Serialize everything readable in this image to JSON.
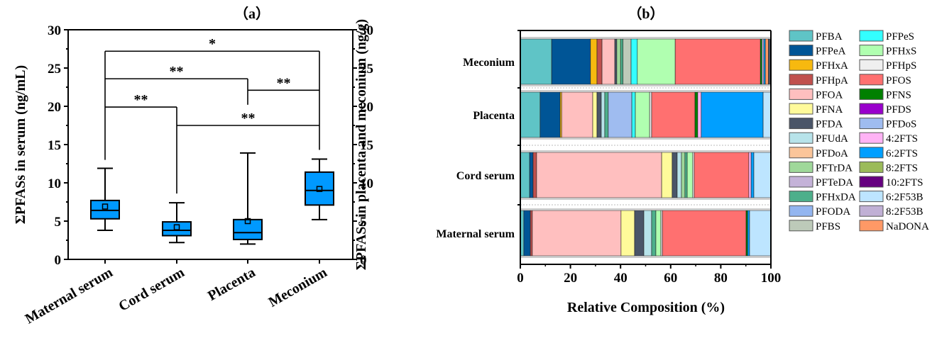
{
  "chart_data": [
    {
      "type": "box",
      "panel_title": "（a）",
      "categories": [
        "Maternal serum",
        "Cord serum",
        "Placenta",
        "Meconium"
      ],
      "ylabel_left": "ΣPFASs in serum (ng/mL)",
      "ylabel_right": "ΣPFASs in placenta and meconium (ng/g)",
      "ylim": [
        0,
        30
      ],
      "yticks": [
        0,
        5,
        10,
        15,
        20,
        25,
        30
      ],
      "box_color": "#0099ff",
      "boxes": [
        {
          "name": "Maternal serum",
          "whisker_low": 3.8,
          "q1": 5.3,
          "median": 6.4,
          "q3": 7.7,
          "whisker_high": 11.9,
          "mean": 6.9
        },
        {
          "name": "Cord serum",
          "whisker_low": 2.2,
          "q1": 3.1,
          "median": 3.8,
          "q3": 4.9,
          "whisker_high": 7.4,
          "mean": 4.2
        },
        {
          "name": "Placenta",
          "whisker_low": 2.0,
          "q1": 2.6,
          "median": 3.5,
          "q3": 5.2,
          "whisker_high": 13.9,
          "mean": 5.0
        },
        {
          "name": "Meconium",
          "whisker_low": 5.2,
          "q1": 7.1,
          "median": 9.0,
          "q3": 11.4,
          "whisker_high": 13.1,
          "mean": 9.2
        }
      ],
      "significance": [
        {
          "from": 0,
          "to": 3,
          "level": 27.2,
          "label": "*",
          "from_drop": 13.0,
          "to_drop": 14.3
        },
        {
          "from": 0,
          "to": 2,
          "level": 23.6,
          "label": "**",
          "from_drop": 23.6,
          "to_drop": 20.2
        },
        {
          "from": 2,
          "to": 3,
          "level": 22.1,
          "label": "**",
          "from_drop": 22.1,
          "to_drop": 22.1
        },
        {
          "from": 0,
          "to": 1,
          "level": 19.9,
          "label": "**",
          "from_drop": 19.9,
          "to_drop": 8.6
        },
        {
          "from": 1,
          "to": 3,
          "level": 17.5,
          "label": "**",
          "from_drop": 17.5,
          "to_drop": 17.5
        }
      ]
    },
    {
      "type": "stacked_bar_horizontal",
      "panel_title": "（b）",
      "xlabel": "Relative Composition (%)",
      "xlim": [
        0,
        100
      ],
      "xticks": [
        0,
        20,
        40,
        60,
        80,
        100
      ],
      "categories": [
        "Meconium",
        "Placenta",
        "Cord serum",
        "Maternal serum"
      ],
      "legend": [
        {
          "name": "PFBA",
          "color": "#5fc4c6"
        },
        {
          "name": "PFPeA",
          "color": "#005596"
        },
        {
          "name": "PFHxA",
          "color": "#f7b90f"
        },
        {
          "name": "PFHpA",
          "color": "#c0504d"
        },
        {
          "name": "PFOA",
          "color": "#ffbfbf"
        },
        {
          "name": "PFNA",
          "color": "#fffa9a"
        },
        {
          "name": "PFDA",
          "color": "#4a5568"
        },
        {
          "name": "PFUdA",
          "color": "#b7e3ea"
        },
        {
          "name": "PFDoA",
          "color": "#fbc59a"
        },
        {
          "name": "PFTrDA",
          "color": "#9fd89a"
        },
        {
          "name": "PFTeDA",
          "color": "#c4b2d8"
        },
        {
          "name": "PFHxDA",
          "color": "#4daf8b"
        },
        {
          "name": "PFODA",
          "color": "#93b5f0"
        },
        {
          "name": "PFBS",
          "color": "#bdcab9"
        },
        {
          "name": "PFPeS",
          "color": "#33ffff"
        },
        {
          "name": "PFHxS",
          "color": "#b0ffb0"
        },
        {
          "name": "PFHpS",
          "color": "#efefef"
        },
        {
          "name": "PFOS",
          "color": "#ff7070"
        },
        {
          "name": "PFNS",
          "color": "#008000"
        },
        {
          "name": "PFDS",
          "color": "#9900cc"
        },
        {
          "name": "PFDoS",
          "color": "#9fbcf0"
        },
        {
          "name": "4:2FTS",
          "color": "#ffb3f5"
        },
        {
          "name": "6:2FTS",
          "color": "#009fff"
        },
        {
          "name": "8:2FTS",
          "color": "#9bbb59"
        },
        {
          "name": "10:2FTS",
          "color": "#660080"
        },
        {
          "name": "6:2F53B",
          "color": "#bde5ff"
        },
        {
          "name": "8:2F53B",
          "color": "#c0b0d5"
        },
        {
          "name": "NaDONA",
          "color": "#ff9966"
        }
      ],
      "series_by_category": {
        "Meconium": [
          {
            "name": "PFBA",
            "value": 12.5
          },
          {
            "name": "PFPeA",
            "value": 15.5
          },
          {
            "name": "PFHxA",
            "value": 2.6
          },
          {
            "name": "PFHpA",
            "value": 2.0
          },
          {
            "name": "PFOA",
            "value": 5.1
          },
          {
            "name": "PFDA",
            "value": 0.8
          },
          {
            "name": "PFTrDA",
            "value": 1.5
          },
          {
            "name": "PFHxDA",
            "value": 1.0
          },
          {
            "name": "PFBS",
            "value": 3.2
          },
          {
            "name": "PFPeS",
            "value": 2.5
          },
          {
            "name": "PFHxS",
            "value": 15.1
          },
          {
            "name": "PFOS",
            "value": 34.0
          },
          {
            "name": "PFNS",
            "value": 0.6
          },
          {
            "name": "8:2F53B",
            "value": 0.8
          },
          {
            "name": "6:2FTS",
            "value": 0.6
          },
          {
            "name": "NaDONA",
            "value": 1.2
          },
          {
            "name": "PFDA",
            "value": 1.0
          }
        ],
        "Placenta": [
          {
            "name": "PFBA",
            "value": 7.9
          },
          {
            "name": "PFPeA",
            "value": 8.0
          },
          {
            "name": "PFHxA",
            "value": 0.6
          },
          {
            "name": "PFOA",
            "value": 12.4
          },
          {
            "name": "PFNA",
            "value": 1.7
          },
          {
            "name": "PFDA",
            "value": 1.7
          },
          {
            "name": "PFUdA",
            "value": 1.4
          },
          {
            "name": "PFHxDA",
            "value": 1.4
          },
          {
            "name": "PFDoS",
            "value": 9.4
          },
          {
            "name": "PFPeS",
            "value": 1.4
          },
          {
            "name": "PFHxS",
            "value": 5.7
          },
          {
            "name": "PFHpS",
            "value": 0.8
          },
          {
            "name": "PFOS",
            "value": 17.3
          },
          {
            "name": "PFNS",
            "value": 1.1
          },
          {
            "name": "4:2FTS",
            "value": 1.4
          },
          {
            "name": "6:2FTS",
            "value": 24.7
          },
          {
            "name": "6:2F53B",
            "value": 3.1
          }
        ],
        "Cord serum": [
          {
            "name": "PFBA",
            "value": 3.7
          },
          {
            "name": "PFPeA",
            "value": 1.4
          },
          {
            "name": "PFHpA",
            "value": 1.4
          },
          {
            "name": "PFOA",
            "value": 49.9
          },
          {
            "name": "PFNA",
            "value": 4.2
          },
          {
            "name": "PFDA",
            "value": 2.0
          },
          {
            "name": "PFUdA",
            "value": 1.7
          },
          {
            "name": "PFTrDA",
            "value": 1.4
          },
          {
            "name": "PFHxDA",
            "value": 0.9
          },
          {
            "name": "PFHxS",
            "value": 2.2
          },
          {
            "name": "PFHpS",
            "value": 0.6
          },
          {
            "name": "PFOS",
            "value": 21.8
          },
          {
            "name": "4:2FTS",
            "value": 0.9
          },
          {
            "name": "6:2FTS",
            "value": 1.1
          },
          {
            "name": "6:2F53B",
            "value": 6.8
          }
        ],
        "Maternal serum": [
          {
            "name": "PFBA",
            "value": 1.4
          },
          {
            "name": "PFPeA",
            "value": 2.6
          },
          {
            "name": "PFHpA",
            "value": 0.8
          },
          {
            "name": "PFOA",
            "value": 35.4
          },
          {
            "name": "PFNA",
            "value": 5.4
          },
          {
            "name": "PFDA",
            "value": 3.7
          },
          {
            "name": "PFUdA",
            "value": 3.1
          },
          {
            "name": "PFHxDA",
            "value": 1.7
          },
          {
            "name": "PFHxS",
            "value": 2.0
          },
          {
            "name": "PFHpS",
            "value": 0.6
          },
          {
            "name": "PFOS",
            "value": 33.4
          },
          {
            "name": "PFNS",
            "value": 0.6
          },
          {
            "name": "6:2FTS",
            "value": 0.8
          },
          {
            "name": "6:2F53B",
            "value": 8.5
          }
        ]
      }
    }
  ]
}
